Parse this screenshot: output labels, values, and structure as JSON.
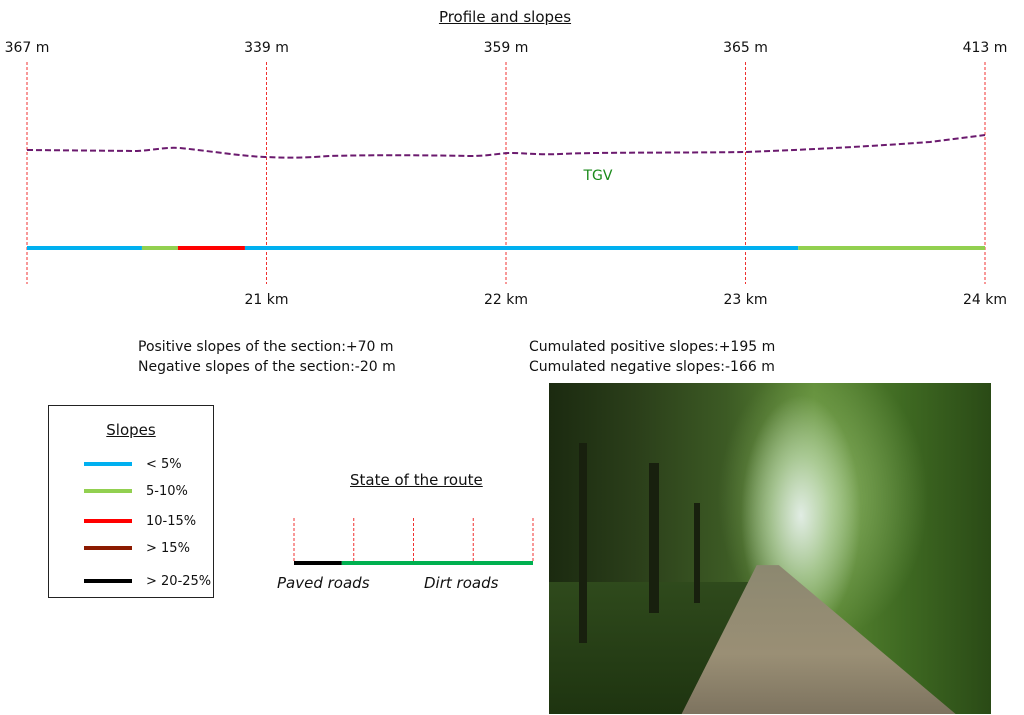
{
  "title": "Profile and slopes",
  "profile": {
    "elevations": [
      "367 m",
      "339 m",
      "359 m",
      "365 m",
      "413 m"
    ],
    "km_labels": [
      "",
      "21 km",
      "22 km",
      "23 km",
      "24 km"
    ],
    "landmark": "TGV",
    "colors": {
      "profile": "#6b1a6e",
      "landmark": "#1a8a1a",
      "grid": "#f03030"
    },
    "slope_segments": [
      {
        "from_km": 20.0,
        "to_km": 20.48,
        "class": "< 5%"
      },
      {
        "from_km": 20.48,
        "to_km": 20.63,
        "class": "5-10%"
      },
      {
        "from_km": 20.63,
        "to_km": 20.91,
        "class": "10-15%"
      },
      {
        "from_km": 20.91,
        "to_km": 23.22,
        "class": "< 5%"
      },
      {
        "from_km": 23.22,
        "to_km": 24.0,
        "class": "5-10%"
      }
    ]
  },
  "stats": {
    "section_positive": "Positive slopes of the section:+70 m",
    "section_negative": "Negative slopes of the section:-20 m",
    "cumulated_positive": "Cumulated positive slopes:+195 m",
    "cumulated_negative": "Cumulated negative slopes:-166 m"
  },
  "legend": {
    "title": "Slopes",
    "items": [
      {
        "label": "< 5%",
        "color": "#00b0f0"
      },
      {
        "label": "5-10%",
        "color": "#92d050"
      },
      {
        "label": "10-15%",
        "color": "#ff0000"
      },
      {
        "label": "> 15%",
        "color": "#8b1a00"
      },
      {
        "label": "> 20-25%",
        "color": "#000000"
      }
    ]
  },
  "route_state": {
    "title": "State of the route",
    "segments": [
      {
        "label": "Paved roads",
        "color": "#000000",
        "fraction": 0.2
      },
      {
        "label": "Dirt roads",
        "color": "#00b050",
        "fraction": 0.8
      }
    ]
  }
}
